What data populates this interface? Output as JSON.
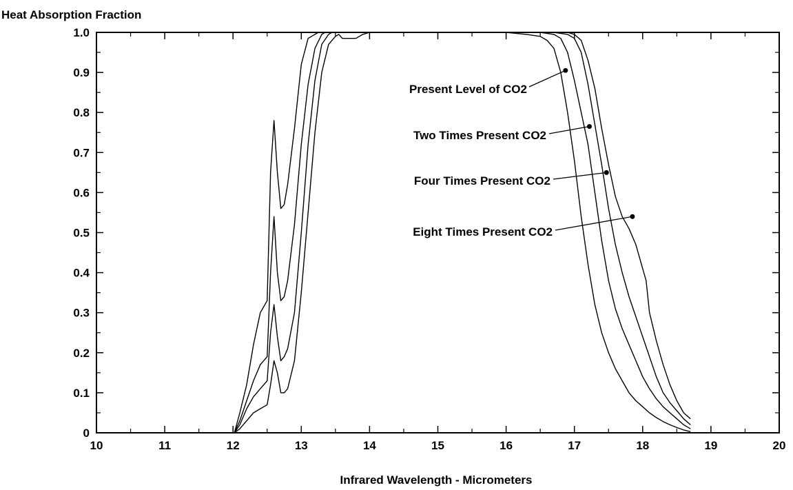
{
  "chart_data": {
    "type": "line",
    "title": "",
    "ylabel": "Heat Absorption Fraction",
    "xlabel": "Infrared Wavelength - Micrometers",
    "xlim": [
      10,
      20
    ],
    "ylim": [
      0,
      1.0
    ],
    "xticks": [
      "10",
      "11",
      "12",
      "13",
      "14",
      "15",
      "16",
      "17",
      "18",
      "19",
      "20"
    ],
    "yticks": [
      "0",
      "0.1",
      "0.2",
      "0.3",
      "0.4",
      "0.5",
      "0.6",
      "0.7",
      "0.8",
      "0.9",
      "1.0"
    ],
    "grid": false,
    "line_color": "#000000",
    "series": [
      {
        "name": "Present Level of CO2",
        "x": [
          12.02,
          12.1,
          12.2,
          12.3,
          12.4,
          12.5,
          12.55,
          12.6,
          12.65,
          12.7,
          12.75,
          12.8,
          12.9,
          13.0,
          13.1,
          13.2,
          13.3,
          13.4,
          13.5,
          13.55,
          13.6,
          13.7,
          13.8,
          13.9,
          14.0,
          14.5,
          15.0,
          15.5,
          16.0,
          16.3,
          16.5,
          16.6,
          16.7,
          16.8,
          16.9,
          17.0,
          17.1,
          17.2,
          17.3,
          17.4,
          17.5,
          17.6,
          17.7,
          17.8,
          17.9,
          18.0,
          18.1,
          18.2,
          18.3,
          18.4,
          18.5,
          18.6,
          18.7
        ],
        "y": [
          0.0,
          0.01,
          0.03,
          0.05,
          0.06,
          0.07,
          0.12,
          0.18,
          0.15,
          0.1,
          0.1,
          0.11,
          0.18,
          0.35,
          0.55,
          0.75,
          0.9,
          0.97,
          0.99,
          0.995,
          0.985,
          0.985,
          0.985,
          0.995,
          1.0,
          1.0,
          1.0,
          1.0,
          1.0,
          0.995,
          0.99,
          0.98,
          0.96,
          0.9,
          0.8,
          0.68,
          0.54,
          0.42,
          0.32,
          0.25,
          0.2,
          0.16,
          0.13,
          0.1,
          0.08,
          0.065,
          0.05,
          0.038,
          0.028,
          0.02,
          0.013,
          0.007,
          0.003
        ]
      },
      {
        "name": "Two Times Present CO2",
        "x": [
          12.02,
          12.1,
          12.2,
          12.3,
          12.4,
          12.5,
          12.55,
          12.6,
          12.65,
          12.7,
          12.75,
          12.8,
          12.9,
          13.0,
          13.1,
          13.2,
          13.3,
          13.4,
          13.45,
          13.5,
          14.0,
          15.0,
          16.0,
          16.5,
          16.7,
          16.8,
          16.9,
          17.0,
          17.1,
          17.2,
          17.3,
          17.4,
          17.5,
          17.6,
          17.7,
          17.8,
          17.9,
          18.0,
          18.1,
          18.2,
          18.3,
          18.4,
          18.5,
          18.6,
          18.7
        ],
        "y": [
          0.0,
          0.02,
          0.06,
          0.09,
          0.11,
          0.13,
          0.25,
          0.32,
          0.24,
          0.18,
          0.19,
          0.21,
          0.3,
          0.5,
          0.72,
          0.88,
          0.97,
          0.995,
          1.0,
          1.0,
          1.0,
          1.0,
          1.0,
          1.0,
          0.995,
          0.985,
          0.95,
          0.88,
          0.8,
          0.72,
          0.6,
          0.48,
          0.38,
          0.31,
          0.26,
          0.22,
          0.18,
          0.14,
          0.11,
          0.085,
          0.065,
          0.05,
          0.035,
          0.02,
          0.01
        ]
      },
      {
        "name": "Four Times Present CO2",
        "x": [
          12.02,
          12.1,
          12.2,
          12.3,
          12.4,
          12.5,
          12.55,
          12.6,
          12.65,
          12.7,
          12.75,
          12.8,
          12.9,
          13.0,
          13.1,
          13.2,
          13.3,
          13.35,
          13.4,
          14.0,
          15.0,
          16.0,
          16.7,
          16.9,
          17.0,
          17.1,
          17.2,
          17.3,
          17.4,
          17.5,
          17.6,
          17.7,
          17.8,
          17.9,
          18.0,
          18.1,
          18.2,
          18.3,
          18.4,
          18.5,
          18.6,
          18.7
        ],
        "y": [
          0.0,
          0.03,
          0.08,
          0.13,
          0.17,
          0.19,
          0.4,
          0.54,
          0.4,
          0.33,
          0.34,
          0.38,
          0.52,
          0.72,
          0.87,
          0.96,
          0.995,
          1.0,
          1.0,
          1.0,
          1.0,
          1.0,
          1.0,
          0.995,
          0.985,
          0.95,
          0.87,
          0.77,
          0.67,
          0.56,
          0.47,
          0.4,
          0.34,
          0.29,
          0.24,
          0.19,
          0.14,
          0.1,
          0.075,
          0.055,
          0.035,
          0.02
        ]
      },
      {
        "name": "Eight Times Present CO2",
        "x": [
          12.02,
          12.1,
          12.2,
          12.3,
          12.4,
          12.5,
          12.55,
          12.6,
          12.65,
          12.7,
          12.75,
          12.8,
          12.9,
          13.0,
          13.1,
          13.2,
          13.25,
          13.3,
          14.0,
          15.0,
          16.0,
          16.8,
          16.9,
          17.0,
          17.1,
          17.2,
          17.3,
          17.4,
          17.5,
          17.6,
          17.7,
          17.8,
          17.9,
          18.0,
          18.05,
          18.1,
          18.2,
          18.3,
          18.4,
          18.5,
          18.6,
          18.7
        ],
        "y": [
          0.0,
          0.05,
          0.12,
          0.22,
          0.3,
          0.33,
          0.65,
          0.78,
          0.65,
          0.56,
          0.57,
          0.62,
          0.76,
          0.92,
          0.985,
          0.995,
          1.0,
          1.0,
          1.0,
          1.0,
          1.0,
          1.0,
          1.0,
          0.995,
          0.98,
          0.93,
          0.86,
          0.76,
          0.67,
          0.59,
          0.54,
          0.51,
          0.47,
          0.41,
          0.38,
          0.3,
          0.23,
          0.17,
          0.12,
          0.08,
          0.05,
          0.035
        ]
      }
    ],
    "annotations": [
      {
        "text": "Present Level of CO2",
        "series": "Present Level of CO2",
        "x": 16.87,
        "y": 0.905
      },
      {
        "text": "Two Times Present CO2",
        "series": "Two Times Present CO2",
        "x": 17.22,
        "y": 0.765
      },
      {
        "text": "Four Times Present CO2",
        "series": "Four Times Present CO2",
        "x": 17.47,
        "y": 0.65
      },
      {
        "text": "Eight Times Present CO2",
        "series": "Eight Times Present CO2",
        "x": 17.85,
        "y": 0.54
      }
    ]
  }
}
